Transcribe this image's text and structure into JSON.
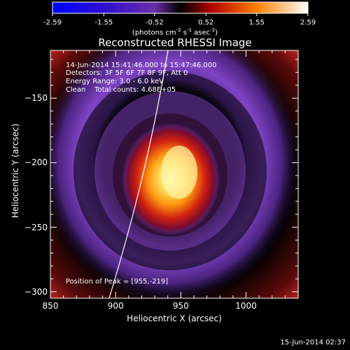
{
  "colorbar": {
    "ticks": [
      "-2.59",
      "-1.55",
      "-0.52",
      "0.52",
      "1.55",
      "2.59"
    ],
    "tick_values": [
      -2.59,
      -1.55,
      -0.52,
      0.52,
      1.55,
      2.59
    ],
    "range": [
      -2.59,
      2.59
    ],
    "units_prefix": "(photons cm",
    "units_exp1": "-2",
    "units_mid1": " s",
    "units_exp2": "-1",
    "units_mid2": " asec",
    "units_exp3": "-2",
    "units_suffix": ")"
  },
  "title": "Reconstructed RHESSI Image",
  "annotations": {
    "time_range": "14-Jun-2014 15:41:46.000 to 15:47:46.000",
    "detectors": "Detectors: 3F 5F 6F 7F 8F 9F, Att 0",
    "energy": "Energy Range: 3.0 - 6.0 keV",
    "clean": "Clean    Total counts: 4.68E+05",
    "peak": "Position of Peak = [955,-219]"
  },
  "footer_date": "15-Jun-2014 02:37",
  "chart_data": {
    "type": "heatmap",
    "title": "Reconstructed RHESSI Image",
    "xlabel": "Heliocentric X (arcsec)",
    "ylabel": "Heliocentric Y (arcsec)",
    "xlim": [
      850,
      1040
    ],
    "ylim": [
      -305,
      -113
    ],
    "x_ticks": [
      850,
      900,
      950,
      1000
    ],
    "y_ticks": [
      -150,
      -200,
      -250,
      -300
    ],
    "colorbar_range": [
      -2.59,
      2.59
    ],
    "peak_position": [
      955,
      -219
    ],
    "colors": {
      "background": "#000000",
      "ring": "#7a3fb8",
      "core_low": "#b01010",
      "core_mid": "#ff7a00",
      "core_high": "#fff8a0"
    }
  }
}
